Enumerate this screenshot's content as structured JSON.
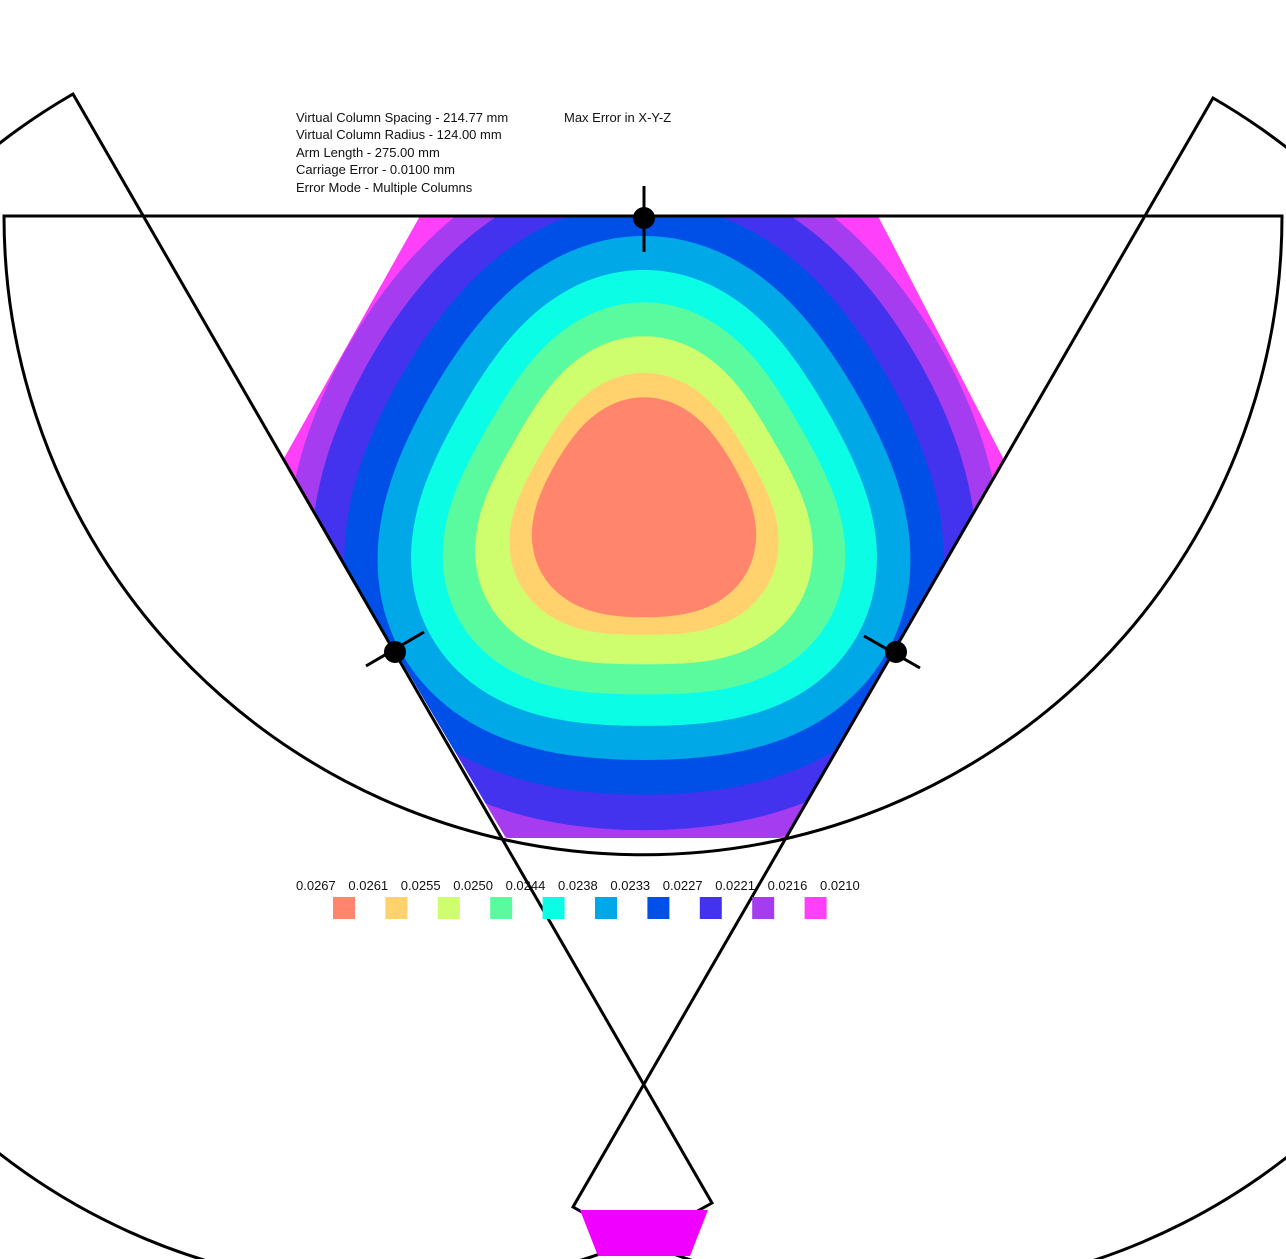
{
  "info": {
    "spacing": "Virtual Column Spacing - 214.77 mm",
    "radius": "Virtual Column Radius - 124.00 mm",
    "arm_length": "Arm Length - 275.00 mm",
    "carriage_error": "Carriage Error - 0.0100 mm",
    "error_mode": "Error Mode - Multiple Columns",
    "metric": "Max Error in X-Y-Z"
  },
  "legend": [
    {
      "label": "0.0267",
      "color": "#ff866c"
    },
    {
      "label": "0.0261",
      "color": "#ffd26e"
    },
    {
      "label": "0.0255",
      "color": "#cefd6e"
    },
    {
      "label": "0.0250",
      "color": "#5afb9f"
    },
    {
      "label": "0.0244",
      "color": "#0cfde6"
    },
    {
      "label": "0.0238",
      "color": "#00a8e8"
    },
    {
      "label": "0.0233",
      "color": "#0050e8"
    },
    {
      "label": "0.0227",
      "color": "#4433ee"
    },
    {
      "label": "0.0221",
      "color": "#a53cf0"
    },
    {
      "label": "0.0216",
      "color": "#ff40fb"
    },
    {
      "label": "0.0210",
      "color": "#ff3dfa"
    }
  ],
  "colors": {
    "outline": "#000000",
    "bottom_patch": "#f000ff"
  },
  "icons": {
    "column_marker": "column-marker-icon"
  }
}
